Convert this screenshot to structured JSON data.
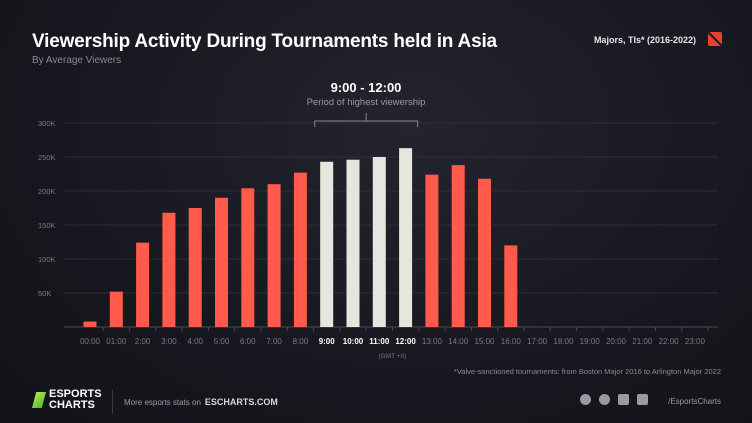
{
  "header": {
    "title": "Viewership Activity During Tournaments held in Asia",
    "subtitle": "By Average Viewers",
    "tag": "Majors, TIs* (2016-2022)"
  },
  "highlight": {
    "title": "9:00 - 12:00",
    "subtitle": "Period of highest viewership"
  },
  "footer": {
    "note": "*Valve-sanctioned tournaments: from Boston Major 2016 to Arlington Major 2022",
    "logo": "ESPORTS CHARTS",
    "more_text": "More esports stats on",
    "more_link": "ESCHARTS.COM",
    "handle": "/EsportsCharts"
  },
  "colors": {
    "normal": "#ff5a4c",
    "highlight": "#e6e6df",
    "grid": "#2e2e38"
  },
  "chart_data": {
    "type": "bar",
    "title": "Viewership Activity During Tournaments held in Asia",
    "xlabel": "(GMT +0)",
    "ylabel": "Average Viewers",
    "ylim": [
      0,
      300000
    ],
    "yticks": [
      {
        "v": 50000,
        "l": "50K"
      },
      {
        "v": 100000,
        "l": "100K"
      },
      {
        "v": 150000,
        "l": "150K"
      },
      {
        "v": 200000,
        "l": "200K"
      },
      {
        "v": 250000,
        "l": "250K"
      },
      {
        "v": 300000,
        "l": "300K"
      }
    ],
    "categories": [
      "00:00",
      "01:00",
      "2:00",
      "3:00",
      "4:00",
      "5:00",
      "6:00",
      "7:00",
      "8:00",
      "9:00",
      "10:00",
      "11:00",
      "12:00",
      "13:00",
      "14:00",
      "15:00",
      "16:00",
      "17:00",
      "18:00",
      "19:00",
      "20:00",
      "21:00",
      "22:00",
      "23:00"
    ],
    "values": [
      8000,
      52000,
      124000,
      168000,
      175000,
      190000,
      204000,
      210000,
      227000,
      243000,
      246000,
      250000,
      263000,
      224000,
      238000,
      218000,
      120000,
      0,
      0,
      0,
      0,
      0,
      0,
      0
    ],
    "highlighted": [
      "9:00",
      "10:00",
      "11:00",
      "12:00"
    ]
  }
}
